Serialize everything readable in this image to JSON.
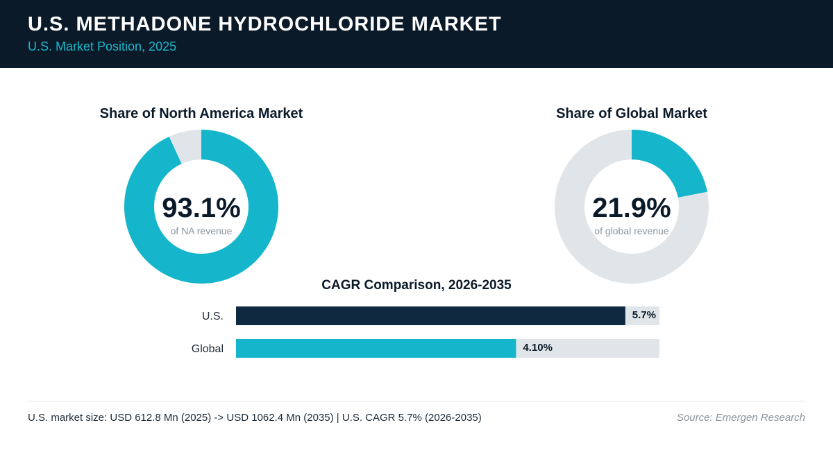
{
  "header": {
    "title": "U.S. METHADONE HYDROCHLORIDE MARKET",
    "subtitle": "U.S. Market Position, 2025"
  },
  "colors": {
    "header_bg": "#0b1a29",
    "accent_teal": "#15b6cb",
    "dark_navy": "#0f2940",
    "track_gray": "#e0e5e9",
    "text_dark": "#0b1a29",
    "text_muted": "#8a949c"
  },
  "chart_data": [
    {
      "type": "pie",
      "title": "Share of North America Market",
      "value": 93.1,
      "value_label": "93.1%",
      "caption": "of NA revenue",
      "max": 100
    },
    {
      "type": "pie",
      "title": "Share of Global Market",
      "value": 21.9,
      "value_label": "21.9%",
      "caption": "of global revenue",
      "max": 100
    },
    {
      "type": "bar",
      "orientation": "horizontal",
      "title": "CAGR Comparison, 2026-2035",
      "categories": [
        "U.S.",
        "Global"
      ],
      "values": [
        5.7,
        4.1
      ],
      "value_labels": [
        "5.7%",
        "4.10%"
      ],
      "xlim": [
        0,
        6.2
      ]
    }
  ],
  "footer": {
    "summary": "U.S. market size: USD 612.8 Mn (2025) -> USD 1062.4 Mn (2035)  |  U.S. CAGR 5.7% (2026-2035)",
    "source": "Source: Emergen Research"
  }
}
